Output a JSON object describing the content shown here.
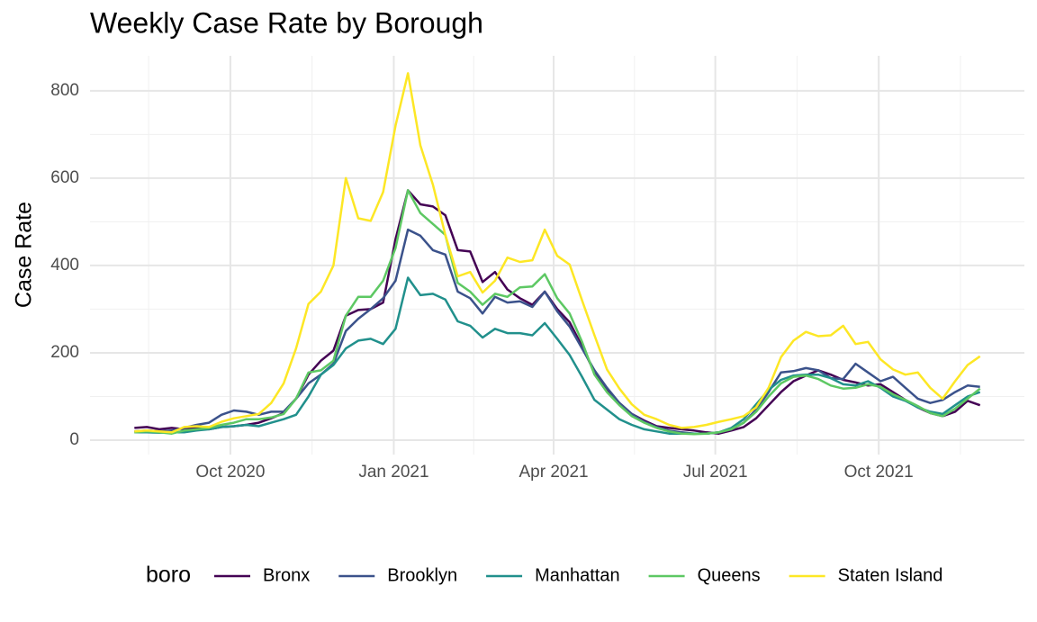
{
  "chart_data": {
    "type": "line",
    "title": "Weekly Case Rate by Borough",
    "y_label": "Case Rate",
    "legend_title": "boro",
    "x": [
      "2020-08-08",
      "2020-08-15",
      "2020-08-22",
      "2020-08-29",
      "2020-09-05",
      "2020-09-12",
      "2020-09-19",
      "2020-09-26",
      "2020-10-03",
      "2020-10-10",
      "2020-10-17",
      "2020-10-24",
      "2020-10-31",
      "2020-11-07",
      "2020-11-14",
      "2020-11-21",
      "2020-11-28",
      "2020-12-05",
      "2020-12-12",
      "2020-12-19",
      "2020-12-26",
      "2021-01-02",
      "2021-01-09",
      "2021-01-16",
      "2021-01-23",
      "2021-01-30",
      "2021-02-06",
      "2021-02-13",
      "2021-02-20",
      "2021-02-27",
      "2021-03-06",
      "2021-03-13",
      "2021-03-20",
      "2021-03-27",
      "2021-04-03",
      "2021-04-10",
      "2021-04-17",
      "2021-04-24",
      "2021-05-01",
      "2021-05-08",
      "2021-05-15",
      "2021-05-22",
      "2021-05-29",
      "2021-06-05",
      "2021-06-12",
      "2021-06-19",
      "2021-06-26",
      "2021-07-03",
      "2021-07-10",
      "2021-07-17",
      "2021-07-24",
      "2021-07-31",
      "2021-08-07",
      "2021-08-14",
      "2021-08-21",
      "2021-08-28",
      "2021-09-04",
      "2021-09-11",
      "2021-09-18",
      "2021-09-25",
      "2021-10-02",
      "2021-10-09",
      "2021-10-16",
      "2021-10-23",
      "2021-10-30",
      "2021-11-06",
      "2021-11-13",
      "2021-11-20",
      "2021-11-27"
    ],
    "series": [
      {
        "name": "Bronx",
        "color": "#440154",
        "values": [
          28,
          30,
          25,
          28,
          25,
          28,
          25,
          30,
          32,
          35,
          40,
          50,
          62,
          95,
          150,
          182,
          205,
          285,
          298,
          300,
          315,
          460,
          572,
          540,
          535,
          515,
          435,
          432,
          362,
          385,
          345,
          325,
          310,
          340,
          300,
          270,
          215,
          155,
          115,
          85,
          60,
          45,
          32,
          28,
          25,
          22,
          18,
          15,
          22,
          30,
          50,
          80,
          110,
          135,
          148,
          160,
          150,
          138,
          132,
          125,
          128,
          110,
          92,
          75,
          62,
          55,
          65,
          90,
          80
        ]
      },
      {
        "name": "Brooklyn",
        "color": "#3B528B",
        "values": [
          20,
          22,
          20,
          22,
          28,
          35,
          40,
          58,
          68,
          65,
          58,
          65,
          65,
          95,
          130,
          150,
          175,
          250,
          278,
          300,
          325,
          365,
          482,
          468,
          435,
          425,
          340,
          325,
          290,
          328,
          315,
          318,
          305,
          340,
          295,
          260,
          210,
          160,
          120,
          85,
          60,
          42,
          30,
          22,
          18,
          15,
          15,
          18,
          25,
          40,
          70,
          110,
          155,
          158,
          165,
          160,
          142,
          140,
          175,
          155,
          135,
          145,
          120,
          95,
          85,
          92,
          110,
          125,
          122
        ]
      },
      {
        "name": "Manhattan",
        "color": "#21908C",
        "values": [
          18,
          18,
          17,
          18,
          18,
          22,
          25,
          30,
          32,
          35,
          32,
          40,
          48,
          58,
          100,
          150,
          172,
          210,
          228,
          232,
          220,
          255,
          372,
          332,
          335,
          322,
          272,
          262,
          235,
          255,
          245,
          245,
          240,
          268,
          232,
          195,
          145,
          92,
          70,
          48,
          35,
          25,
          20,
          15,
          15,
          15,
          15,
          18,
          28,
          48,
          82,
          115,
          138,
          148,
          150,
          150,
          142,
          128,
          125,
          135,
          120,
          100,
          90,
          75,
          65,
          60,
          80,
          100,
          110
        ]
      },
      {
        "name": "Queens",
        "color": "#5DC863",
        "values": [
          18,
          20,
          18,
          15,
          22,
          25,
          28,
          35,
          40,
          48,
          48,
          52,
          60,
          95,
          155,
          160,
          182,
          285,
          328,
          328,
          365,
          440,
          572,
          520,
          495,
          470,
          360,
          340,
          310,
          335,
          328,
          350,
          352,
          380,
          325,
          290,
          225,
          150,
          110,
          80,
          55,
          40,
          28,
          20,
          15,
          14,
          15,
          18,
          25,
          40,
          65,
          100,
          130,
          145,
          148,
          140,
          125,
          118,
          120,
          128,
          122,
          105,
          92,
          78,
          62,
          55,
          72,
          95,
          118
        ]
      },
      {
        "name": "Staten Island",
        "color": "#FDE725",
        "values": [
          20,
          22,
          20,
          18,
          30,
          32,
          30,
          42,
          50,
          55,
          60,
          85,
          130,
          210,
          312,
          340,
          400,
          600,
          508,
          502,
          568,
          720,
          840,
          675,
          585,
          470,
          375,
          385,
          338,
          365,
          418,
          408,
          412,
          482,
          422,
          402,
          320,
          240,
          162,
          118,
          82,
          58,
          48,
          35,
          28,
          30,
          35,
          42,
          48,
          55,
          75,
          120,
          190,
          228,
          248,
          238,
          240,
          262,
          220,
          225,
          185,
          162,
          150,
          155,
          120,
          95,
          135,
          172,
          192
        ]
      }
    ],
    "xlim": [
      "2020-07-14",
      "2021-12-22"
    ],
    "xticks": [
      {
        "value": "2020-10-01",
        "label": "Oct 2020"
      },
      {
        "value": "2021-01-01",
        "label": "Jan 2021"
      },
      {
        "value": "2021-04-01",
        "label": "Apr 2021"
      },
      {
        "value": "2021-07-01",
        "label": "Jul 2021"
      },
      {
        "value": "2021-10-01",
        "label": "Oct 2021"
      }
    ],
    "ylim": [
      -33,
      880
    ],
    "yticks": [
      0,
      200,
      400,
      600,
      800
    ],
    "grid": true,
    "legend": "bottom"
  }
}
